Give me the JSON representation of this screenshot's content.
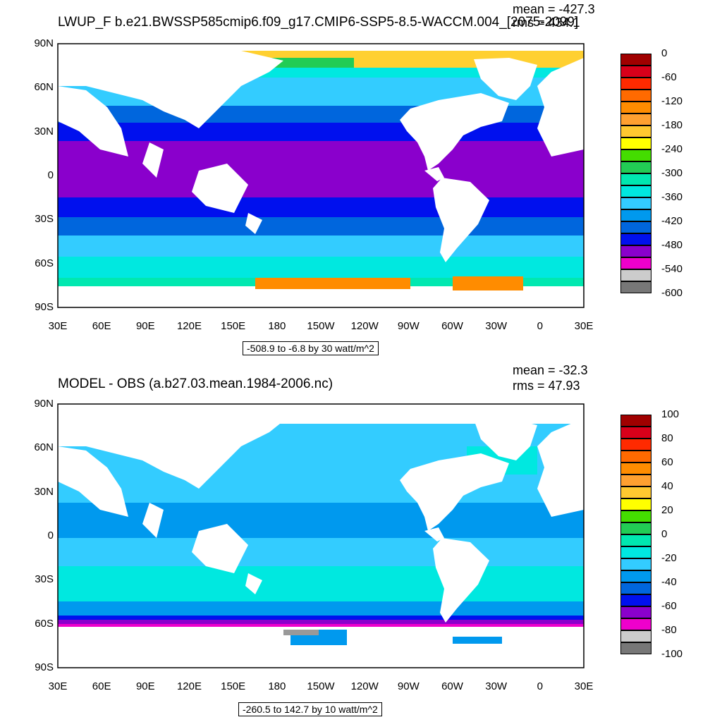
{
  "panels": [
    {
      "id": "top",
      "title": "LWUP_F b.e21.BWSSP585cmip6.f09_g17.CMIP6-SSP5-8.5-WACCM.004_[2075-2099]",
      "mean": "mean = -427.3",
      "rms": "rms = 434.1",
      "range": "-508.9 to -6.8 by 30 watt/m^2",
      "lat_labels": [
        "90N",
        "60N",
        "30N",
        "0",
        "30S",
        "60S",
        "90S"
      ],
      "lon_labels": [
        "30E",
        "60E",
        "90E",
        "120E",
        "150E",
        "180",
        "150W",
        "120W",
        "90W",
        "60W",
        "30W",
        "0",
        "30E"
      ],
      "colorbar_labels": [
        "0",
        "-60",
        "-120",
        "-180",
        "-240",
        "-300",
        "-360",
        "-420",
        "-480",
        "-540",
        "-600"
      ],
      "colorbar_colors": [
        "#a00000",
        "#d8001a",
        "#ff2a00",
        "#ff6a00",
        "#ff8c00",
        "#ffa030",
        "#ffc830",
        "#ffff00",
        "#44dd00",
        "#22cc55",
        "#00e8b0",
        "#00e8e0",
        "#33ccff",
        "#0099ee",
        "#0066dd",
        "#0010ee",
        "#8a00cc",
        "#ee00cc",
        "#cccccc",
        "#777777"
      ]
    },
    {
      "id": "bottom",
      "title": "MODEL - OBS (a.b27.03.mean.1984-2006.nc)",
      "mean": "mean = -32.3",
      "rms": "rms = 47.93",
      "range": "-260.5 to 142.7 by 10 watt/m^2",
      "lat_labels": [
        "90N",
        "60N",
        "30N",
        "0",
        "30S",
        "60S",
        "90S"
      ],
      "lon_labels": [
        "30E",
        "60E",
        "90E",
        "120E",
        "150E",
        "180",
        "150W",
        "120W",
        "90W",
        "60W",
        "30W",
        "0",
        "30E"
      ],
      "colorbar_labels": [
        "100",
        "80",
        "60",
        "40",
        "20",
        "0",
        "-20",
        "-40",
        "-60",
        "-80",
        "-100"
      ],
      "colorbar_colors": [
        "#a00000",
        "#d8001a",
        "#ff2a00",
        "#ff6a00",
        "#ff8c00",
        "#ffa030",
        "#ffc830",
        "#ffff00",
        "#44dd00",
        "#22cc55",
        "#00e8b0",
        "#00e8e0",
        "#33ccff",
        "#0099ee",
        "#0066dd",
        "#0010ee",
        "#8a00cc",
        "#ee00cc",
        "#cccccc",
        "#777777"
      ]
    }
  ],
  "map_colors": {
    "land": "#ffffff",
    "arctic": "#ffd030",
    "orange": "#ff8c00",
    "tropics": "#8a00cc",
    "blue_dark": "#0010ee",
    "blue_mid": "#0066dd",
    "blue_light": "#0099ee",
    "cyan": "#33ccff",
    "cyan_light": "#00e8e0",
    "teal": "#00e8b0",
    "green": "#22cc55",
    "diff_main": "#33ccff",
    "diff_cyan": "#00e8e0",
    "diff_blue": "#0099ee",
    "diff_dark": "#0010ee",
    "diff_purple": "#8a00cc",
    "diff_magenta": "#ee00cc",
    "diff_grey": "#999999"
  }
}
